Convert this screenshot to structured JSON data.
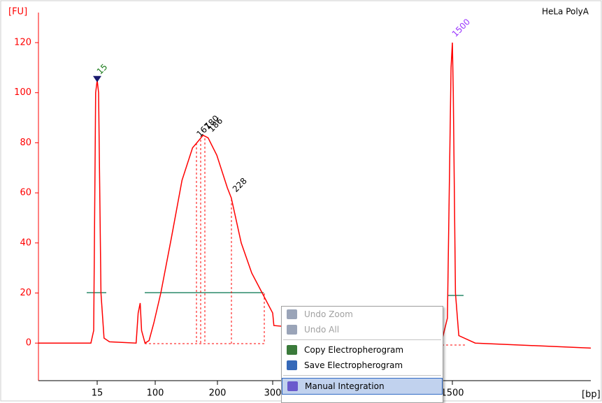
{
  "chart_data": {
    "type": "line",
    "title": "HeLa PolyA",
    "y_label": "[FU]",
    "x_label": "[bp]",
    "color": "#ff0000",
    "x": [
      0,
      13.4,
      14.1,
      14.6,
      15,
      17,
      20.5,
      25,
      33,
      72,
      75,
      78,
      80,
      85,
      91,
      98,
      109,
      126,
      143,
      160,
      167,
      177,
      185,
      199,
      218,
      225,
      243,
      262,
      281,
      300,
      308,
      1430,
      1467,
      1491,
      1500,
      1510,
      1533,
      1570,
      1748,
      3000
    ],
    "values": [
      0,
      0,
      5,
      100,
      105,
      100,
      20,
      2,
      0.5,
      0,
      12,
      16,
      5,
      0,
      1,
      8,
      20,
      42,
      65,
      78,
      80,
      83,
      82,
      75,
      62,
      58,
      40,
      28,
      20,
      12,
      7,
      1,
      10,
      110,
      120,
      100,
      20,
      3,
      0,
      -2
    ],
    "xlim": [
      0,
      3000
    ],
    "xticks": [
      15,
      100,
      200,
      300,
      1500
    ],
    "ylim": [
      -15,
      132
    ],
    "yticks": [
      0,
      20,
      40,
      60,
      80,
      100,
      120
    ],
    "annotations": [
      {
        "label": "15",
        "x": 15,
        "y": 105,
        "color": "#1a7a1a"
      },
      {
        "label": "167",
        "x": 167,
        "y": 80,
        "color": "#000000"
      },
      {
        "label": "180",
        "x": 180,
        "y": 83,
        "color": "#000000"
      },
      {
        "label": "186",
        "x": 186,
        "y": 82,
        "color": "#000000"
      },
      {
        "label": "228",
        "x": 228,
        "y": 58,
        "color": "#000000"
      },
      {
        "label": "1500",
        "x": 1500,
        "y": 120,
        "color": "#9933ff"
      }
    ]
  },
  "context_menu": {
    "items": [
      {
        "label": "Undo Zoom",
        "enabled": false
      },
      {
        "label": "Undo All",
        "enabled": false
      },
      {
        "label": "Copy Electropherogram",
        "enabled": true
      },
      {
        "label": "Save Electropherogram",
        "enabled": true
      },
      {
        "label": "Manual Integration",
        "enabled": true,
        "highlighted": true
      }
    ]
  }
}
